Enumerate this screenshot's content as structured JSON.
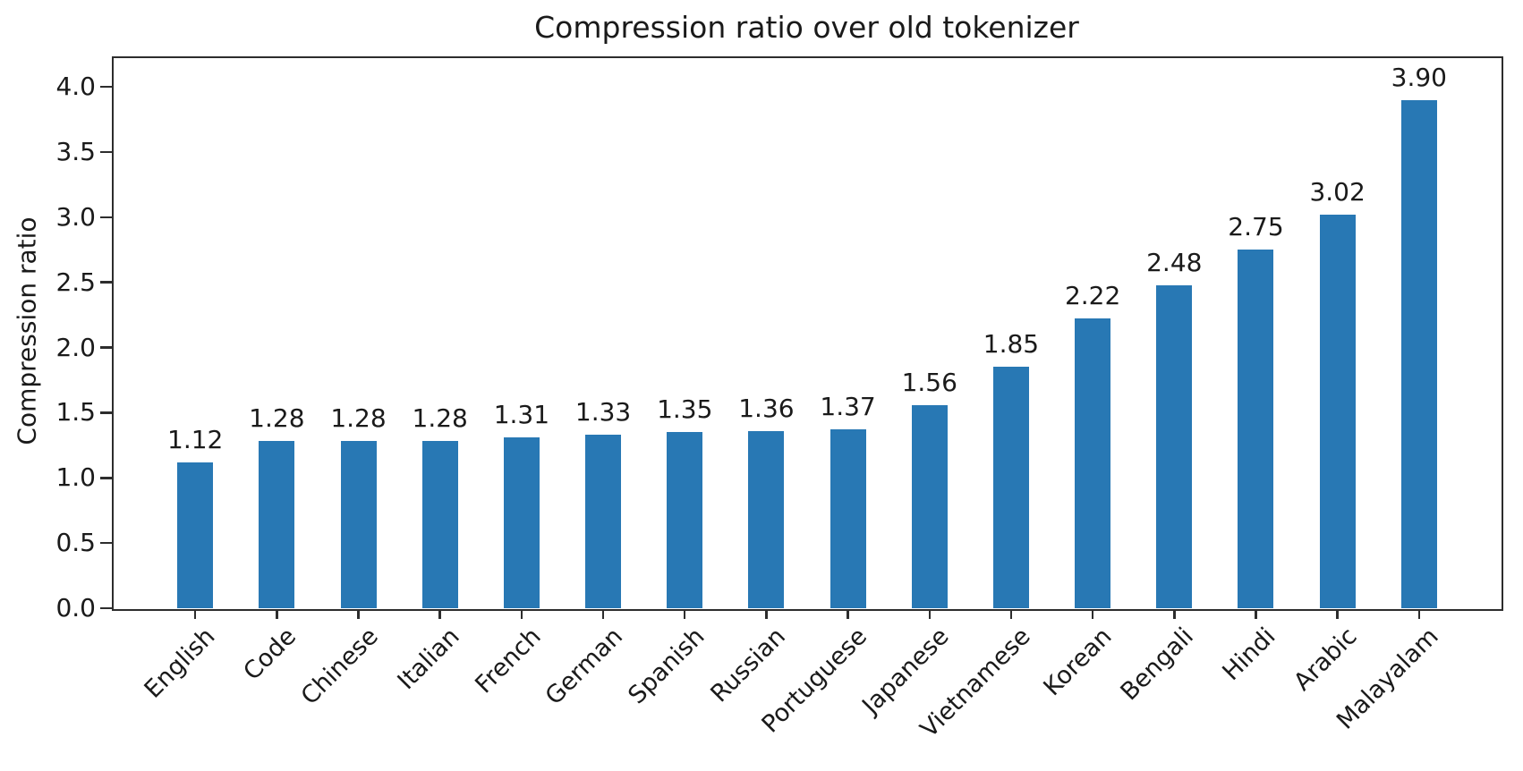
{
  "chart_data": {
    "type": "bar",
    "title": "Compression ratio over old tokenizer",
    "xlabel": "",
    "ylabel": "Compression ratio",
    "categories": [
      "English",
      "Code",
      "Chinese",
      "Italian",
      "French",
      "German",
      "Spanish",
      "Russian",
      "Portuguese",
      "Japanese",
      "Vietnamese",
      "Korean",
      "Bengali",
      "Hindi",
      "Arabic",
      "Malayalam"
    ],
    "values": [
      1.12,
      1.28,
      1.28,
      1.28,
      1.31,
      1.33,
      1.35,
      1.36,
      1.37,
      1.56,
      1.85,
      2.22,
      2.48,
      2.75,
      3.02,
      3.9
    ],
    "value_labels": [
      "1.12",
      "1.28",
      "1.28",
      "1.28",
      "1.31",
      "1.33",
      "1.35",
      "1.36",
      "1.37",
      "1.56",
      "1.85",
      "2.22",
      "2.48",
      "2.75",
      "3.02",
      "3.90"
    ],
    "ylim": [
      0,
      4.22
    ],
    "yticks": [
      0.0,
      0.5,
      1.0,
      1.5,
      2.0,
      2.5,
      3.0,
      3.5,
      4.0
    ],
    "ytick_labels": [
      "0.0",
      "0.5",
      "1.0",
      "1.5",
      "2.0",
      "2.5",
      "3.0",
      "3.5",
      "4.0"
    ],
    "x_tick_rotation": 45,
    "grid": false,
    "legend": null,
    "bar_color": "#2878b4",
    "text_color": "#1a1a1a",
    "spine_color": "#2d2d2d",
    "background_color": "#ffffff"
  }
}
